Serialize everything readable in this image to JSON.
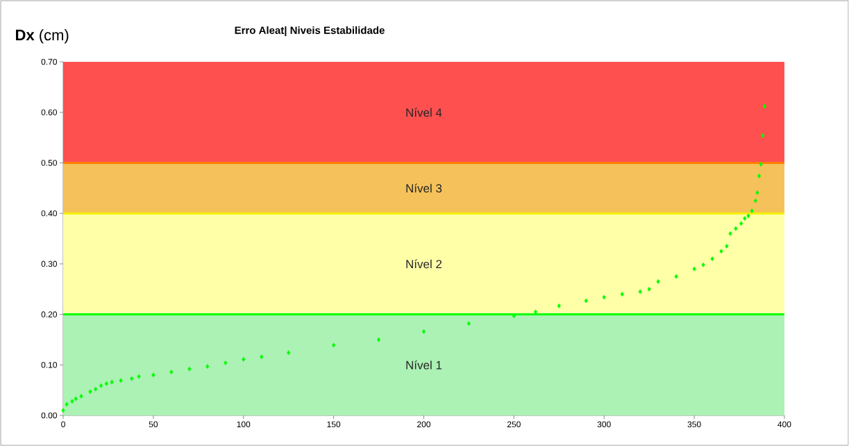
{
  "chart_data": {
    "type": "scatter",
    "title": "Erro Aleat| Niveis Estabilidade",
    "ylabel": "**Dx** (cm)",
    "xlim": [
      0,
      400
    ],
    "ylim": [
      0,
      0.7
    ],
    "xticks": [
      0,
      50,
      100,
      150,
      200,
      250,
      300,
      350,
      400
    ],
    "yticks": [
      {
        "value": 0,
        "label": "0.00"
      },
      {
        "value": 0.1,
        "label": "0.10"
      },
      {
        "value": 0.2,
        "label": "0.20"
      },
      {
        "value": 0.3,
        "label": "0.30"
      },
      {
        "value": 0.4,
        "label": "0.40"
      },
      {
        "value": 0.5,
        "label": "0.50"
      },
      {
        "value": 0.6,
        "label": "0.60"
      },
      {
        "value": 0.7,
        "label": "0.70"
      }
    ],
    "marker": "diamond",
    "bands": [
      {
        "axis": "y",
        "from": 0,
        "to": 0.2,
        "label": "Nível 1",
        "color": "#abf2b4"
      },
      {
        "axis": "y",
        "from": 0.2,
        "to": 0.4,
        "label": "Nível 2",
        "color": "#ffffa8"
      },
      {
        "axis": "y",
        "from": 0.4,
        "to": 0.5,
        "label": "Nível 3",
        "color": "#f5c15a"
      },
      {
        "axis": "y",
        "from": 0.5,
        "to": 0.7,
        "label": "Nível 4",
        "color": "#ff5050"
      }
    ],
    "ref_lines": [
      {
        "axis": "y",
        "value": 0.2,
        "color": "#00ff00"
      },
      {
        "axis": "y",
        "value": 0.4,
        "color": "#f5f000"
      },
      {
        "axis": "y",
        "value": 0.5,
        "color": "#ff8000"
      }
    ],
    "series": [
      {
        "color": "#00ff00",
        "x": [
          0,
          2,
          5,
          7,
          10,
          15,
          18,
          21,
          24,
          27,
          32,
          38,
          42,
          50,
          60,
          70,
          80,
          90,
          100,
          110,
          125,
          150,
          175,
          200,
          225,
          250,
          262,
          275,
          290,
          300,
          310,
          320,
          325,
          330,
          340,
          350,
          355,
          360,
          365,
          368,
          370,
          373,
          376,
          378,
          380,
          382,
          384,
          385,
          386,
          387,
          388,
          389
        ],
        "values": [
          0.01,
          0.022,
          0.028,
          0.033,
          0.038,
          0.047,
          0.052,
          0.059,
          0.063,
          0.066,
          0.069,
          0.073,
          0.077,
          0.08,
          0.086,
          0.092,
          0.097,
          0.104,
          0.111,
          0.116,
          0.124,
          0.139,
          0.15,
          0.166,
          0.182,
          0.197,
          0.205,
          0.217,
          0.227,
          0.234,
          0.24,
          0.245,
          0.25,
          0.265,
          0.275,
          0.29,
          0.298,
          0.31,
          0.325,
          0.335,
          0.36,
          0.37,
          0.38,
          0.39,
          0.395,
          0.405,
          0.425,
          0.441,
          0.474,
          0.497,
          0.554,
          0.612
        ]
      }
    ]
  }
}
